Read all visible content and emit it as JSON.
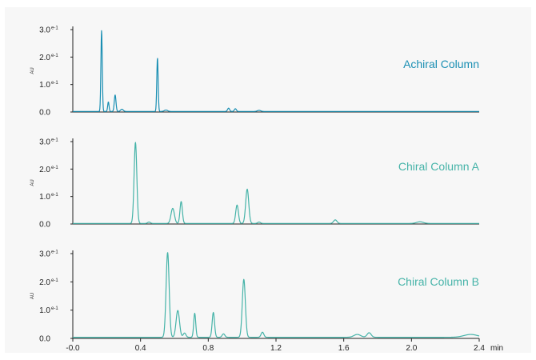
{
  "chart_data": [
    {
      "type": "line",
      "title": "Achiral Column",
      "color": "#1a8fb3",
      "xlim": [
        0.0,
        2.4
      ],
      "ylim": [
        0.0,
        0.3
      ],
      "ylabel": "AU",
      "ytick_labels": [
        "0.0",
        "1.0",
        "2.0",
        "3.0"
      ],
      "ytick_exponents": [
        "",
        "e-1",
        "e-1",
        "e-1"
      ],
      "ytick_values": [
        0.0,
        0.1,
        0.2,
        0.3
      ],
      "peaks": [
        {
          "x": 0.17,
          "y": 0.295,
          "w": 0.004
        },
        {
          "x": 0.21,
          "y": 0.035,
          "w": 0.004
        },
        {
          "x": 0.25,
          "y": 0.06,
          "w": 0.005
        },
        {
          "x": 0.29,
          "y": 0.008,
          "w": 0.008
        },
        {
          "x": 0.5,
          "y": 0.195,
          "w": 0.004
        },
        {
          "x": 0.55,
          "y": 0.005,
          "w": 0.01
        },
        {
          "x": 0.92,
          "y": 0.012,
          "w": 0.006
        },
        {
          "x": 0.96,
          "y": 0.01,
          "w": 0.006
        },
        {
          "x": 1.1,
          "y": 0.004,
          "w": 0.01
        }
      ],
      "baseline": 0.002
    },
    {
      "type": "line",
      "title": "Chiral Column A",
      "color": "#45b3a8",
      "xlim": [
        0.0,
        2.4
      ],
      "ylim": [
        0.0,
        0.3
      ],
      "ylabel": "AU",
      "ytick_labels": [
        "0.0",
        "1.0",
        "2.0",
        "3.0"
      ],
      "ytick_exponents": [
        "",
        "e-1",
        "e-1",
        "e-1"
      ],
      "ytick_values": [
        0.0,
        0.1,
        0.2,
        0.3
      ],
      "peaks": [
        {
          "x": 0.37,
          "y": 0.295,
          "w": 0.008
        },
        {
          "x": 0.45,
          "y": 0.005,
          "w": 0.008
        },
        {
          "x": 0.59,
          "y": 0.055,
          "w": 0.01
        },
        {
          "x": 0.64,
          "y": 0.08,
          "w": 0.007
        },
        {
          "x": 0.97,
          "y": 0.067,
          "w": 0.008
        },
        {
          "x": 1.03,
          "y": 0.125,
          "w": 0.009
        },
        {
          "x": 1.1,
          "y": 0.005,
          "w": 0.008
        },
        {
          "x": 1.55,
          "y": 0.013,
          "w": 0.01
        },
        {
          "x": 2.05,
          "y": 0.006,
          "w": 0.02
        }
      ],
      "baseline": 0.002
    },
    {
      "type": "line",
      "title": "Chiral Column B",
      "color": "#45b3a8",
      "xlim": [
        0.0,
        2.4
      ],
      "ylim": [
        0.0,
        0.3
      ],
      "ylabel": "AU",
      "ytick_labels": [
        "0.0",
        "1.0",
        "2.0",
        "3.0"
      ],
      "ytick_exponents": [
        "",
        "e-1",
        "e-1",
        "e-1"
      ],
      "ytick_values": [
        0.0,
        0.1,
        0.2,
        0.3
      ],
      "xlabel": "min",
      "xtick_labels": [
        "-0.0",
        "0.4",
        "0.8",
        "1.2",
        "1.6",
        "2.0",
        "2.4"
      ],
      "xtick_values": [
        0.0,
        0.4,
        0.8,
        1.2,
        1.6,
        2.0,
        2.4
      ],
      "peaks": [
        {
          "x": 0.56,
          "y": 0.3,
          "w": 0.009
        },
        {
          "x": 0.62,
          "y": 0.095,
          "w": 0.01
        },
        {
          "x": 0.66,
          "y": 0.015,
          "w": 0.008
        },
        {
          "x": 0.72,
          "y": 0.085,
          "w": 0.006
        },
        {
          "x": 0.83,
          "y": 0.088,
          "w": 0.007
        },
        {
          "x": 0.89,
          "y": 0.012,
          "w": 0.008
        },
        {
          "x": 1.01,
          "y": 0.205,
          "w": 0.009
        },
        {
          "x": 1.12,
          "y": 0.018,
          "w": 0.008
        },
        {
          "x": 1.68,
          "y": 0.01,
          "w": 0.02
        },
        {
          "x": 1.75,
          "y": 0.016,
          "w": 0.012
        },
        {
          "x": 2.35,
          "y": 0.01,
          "w": 0.04
        }
      ],
      "baseline": 0.004
    }
  ]
}
